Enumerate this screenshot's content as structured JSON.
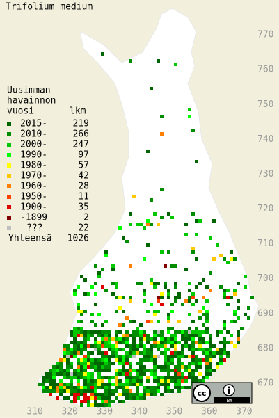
{
  "title": "Trifolium medium",
  "legend": {
    "header": [
      "Uusimman",
      "havainnon"
    ],
    "col1": "vuosi",
    "col2": "lkm",
    "rows": [
      {
        "label": "2015-",
        "count": 219,
        "color": "#006400"
      },
      {
        "label": "2010-",
        "count": 266,
        "color": "#008c00"
      },
      {
        "label": "2000-",
        "count": 247,
        "color": "#00c800"
      },
      {
        "label": "1990-",
        "count": 97,
        "color": "#00ff00"
      },
      {
        "label": "1980-",
        "count": 57,
        "color": "#ffff00"
      },
      {
        "label": "1970-",
        "count": 42,
        "color": "#ffc800"
      },
      {
        "label": "1960-",
        "count": 28,
        "color": "#ff8000"
      },
      {
        "label": "1950-",
        "count": 11,
        "color": "#ff4000"
      },
      {
        "label": "1900-",
        "count": 35,
        "color": "#e00000"
      },
      {
        "label": "-1899",
        "count": 2,
        "color": "#800000"
      },
      {
        "label": "???",
        "count": 22,
        "color": "#c0c0c0"
      }
    ],
    "total_label": "Yhteensä",
    "total": 1026
  },
  "axes": {
    "xlim": [
      300,
      380
    ],
    "ylim": [
      660,
      780
    ],
    "xticks": [
      310,
      320,
      330,
      340,
      350,
      360,
      370
    ],
    "yticks": [
      670,
      680,
      690,
      700,
      710,
      720,
      730,
      740,
      750,
      760,
      770
    ]
  },
  "license": {
    "cc": "cc",
    "by": "BY"
  }
}
